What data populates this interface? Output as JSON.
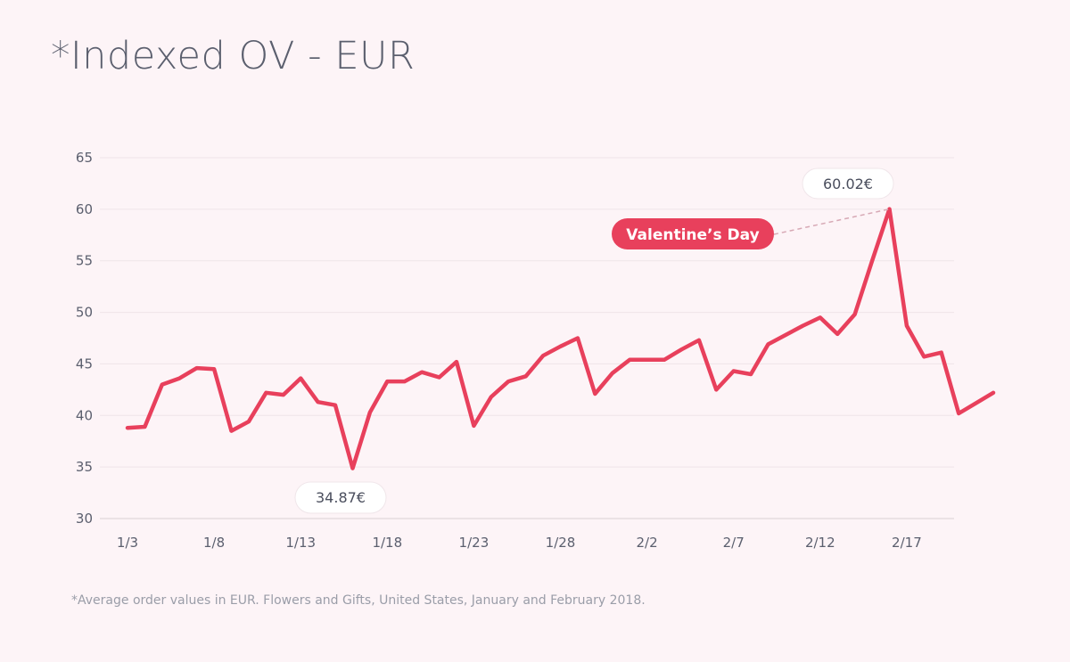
{
  "page": {
    "footnote": "*Average order values in EUR. Flowers and Gifts, United States, January and February 2018."
  },
  "colors": {
    "line": "#e8405c",
    "background": "#fdf4f7",
    "grid": "#efe4e8",
    "text": "#5b5f6e"
  },
  "chart_data": {
    "type": "line",
    "title": "*Indexed OV - EUR",
    "xlabel": "",
    "ylabel": "",
    "ylim": [
      30,
      65
    ],
    "yticks": [
      30,
      35,
      40,
      45,
      50,
      55,
      60,
      65
    ],
    "xticks": [
      {
        "day": 0,
        "label": "1/3"
      },
      {
        "day": 5,
        "label": "1/8"
      },
      {
        "day": 10,
        "label": "1/13"
      },
      {
        "day": 15,
        "label": "1/18"
      },
      {
        "day": 20,
        "label": "1/23"
      },
      {
        "day": 25,
        "label": "1/28"
      },
      {
        "day": 30,
        "label": "2/2"
      },
      {
        "day": 35,
        "label": "2/7"
      },
      {
        "day": 40,
        "label": "2/12"
      },
      {
        "day": 45,
        "label": "2/17"
      }
    ],
    "grid": true,
    "series": [
      {
        "values": [
          38.8,
          38.9,
          43.0,
          43.6,
          44.6,
          44.5,
          38.5,
          39.4,
          42.2,
          42.0,
          43.6,
          41.3,
          41.0,
          34.87,
          40.3,
          43.3,
          43.3,
          44.2,
          43.7,
          45.2,
          39.0,
          41.8,
          43.3,
          43.8,
          45.8,
          46.7,
          47.5,
          42.1,
          44.1,
          45.4,
          45.4,
          45.4,
          46.4,
          47.3,
          42.5,
          44.3,
          44.0,
          46.9,
          47.8,
          48.7,
          49.5,
          47.9,
          49.8,
          55.0,
          60.02,
          48.7,
          45.7,
          46.1,
          40.2,
          41.2,
          42.2
        ]
      }
    ],
    "annotations": [
      {
        "index": 13,
        "value": 34.87,
        "label": "34.87€"
      },
      {
        "index": 44,
        "value": 60.02,
        "label": "60.02€"
      },
      {
        "index": 44,
        "value": 60.02,
        "label": "Valentine’s Day"
      }
    ]
  }
}
